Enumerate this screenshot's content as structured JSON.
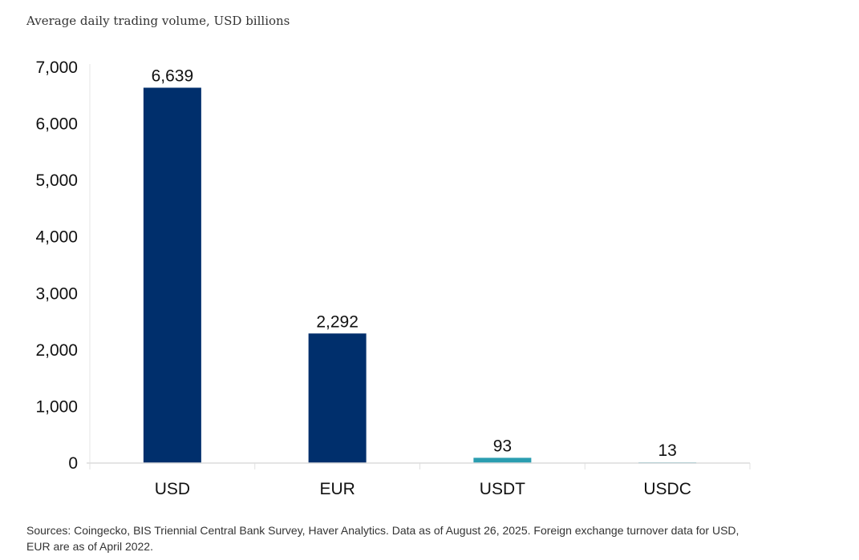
{
  "chart_data": {
    "type": "bar",
    "title": "Average daily trading volume, USD billions",
    "categories": [
      "USD",
      "EUR",
      "USDT",
      "USDC"
    ],
    "values": [
      6639,
      2292,
      93,
      13
    ],
    "data_labels": [
      "6,639",
      "2,292",
      "93",
      "13"
    ],
    "colors": [
      "#002F6C",
      "#002F6C",
      "#2A9DB0",
      "#2A9DB0"
    ],
    "ylim": [
      0,
      7000
    ],
    "yticks": [
      0,
      1000,
      2000,
      3000,
      4000,
      5000,
      6000,
      7000
    ],
    "ytick_labels": [
      "0",
      "1,000",
      "2,000",
      "3,000",
      "4,000",
      "5,000",
      "6,000",
      "7,000"
    ],
    "xlabel": "",
    "ylabel": "",
    "grid": false,
    "legend": "none"
  },
  "source": "Sources: Coingecko, BIS Triennial Central Bank Survey, Haver Analytics. Data as of August 26, 2025. Foreign exchange turnover data for USD, EUR are as of April 2022."
}
